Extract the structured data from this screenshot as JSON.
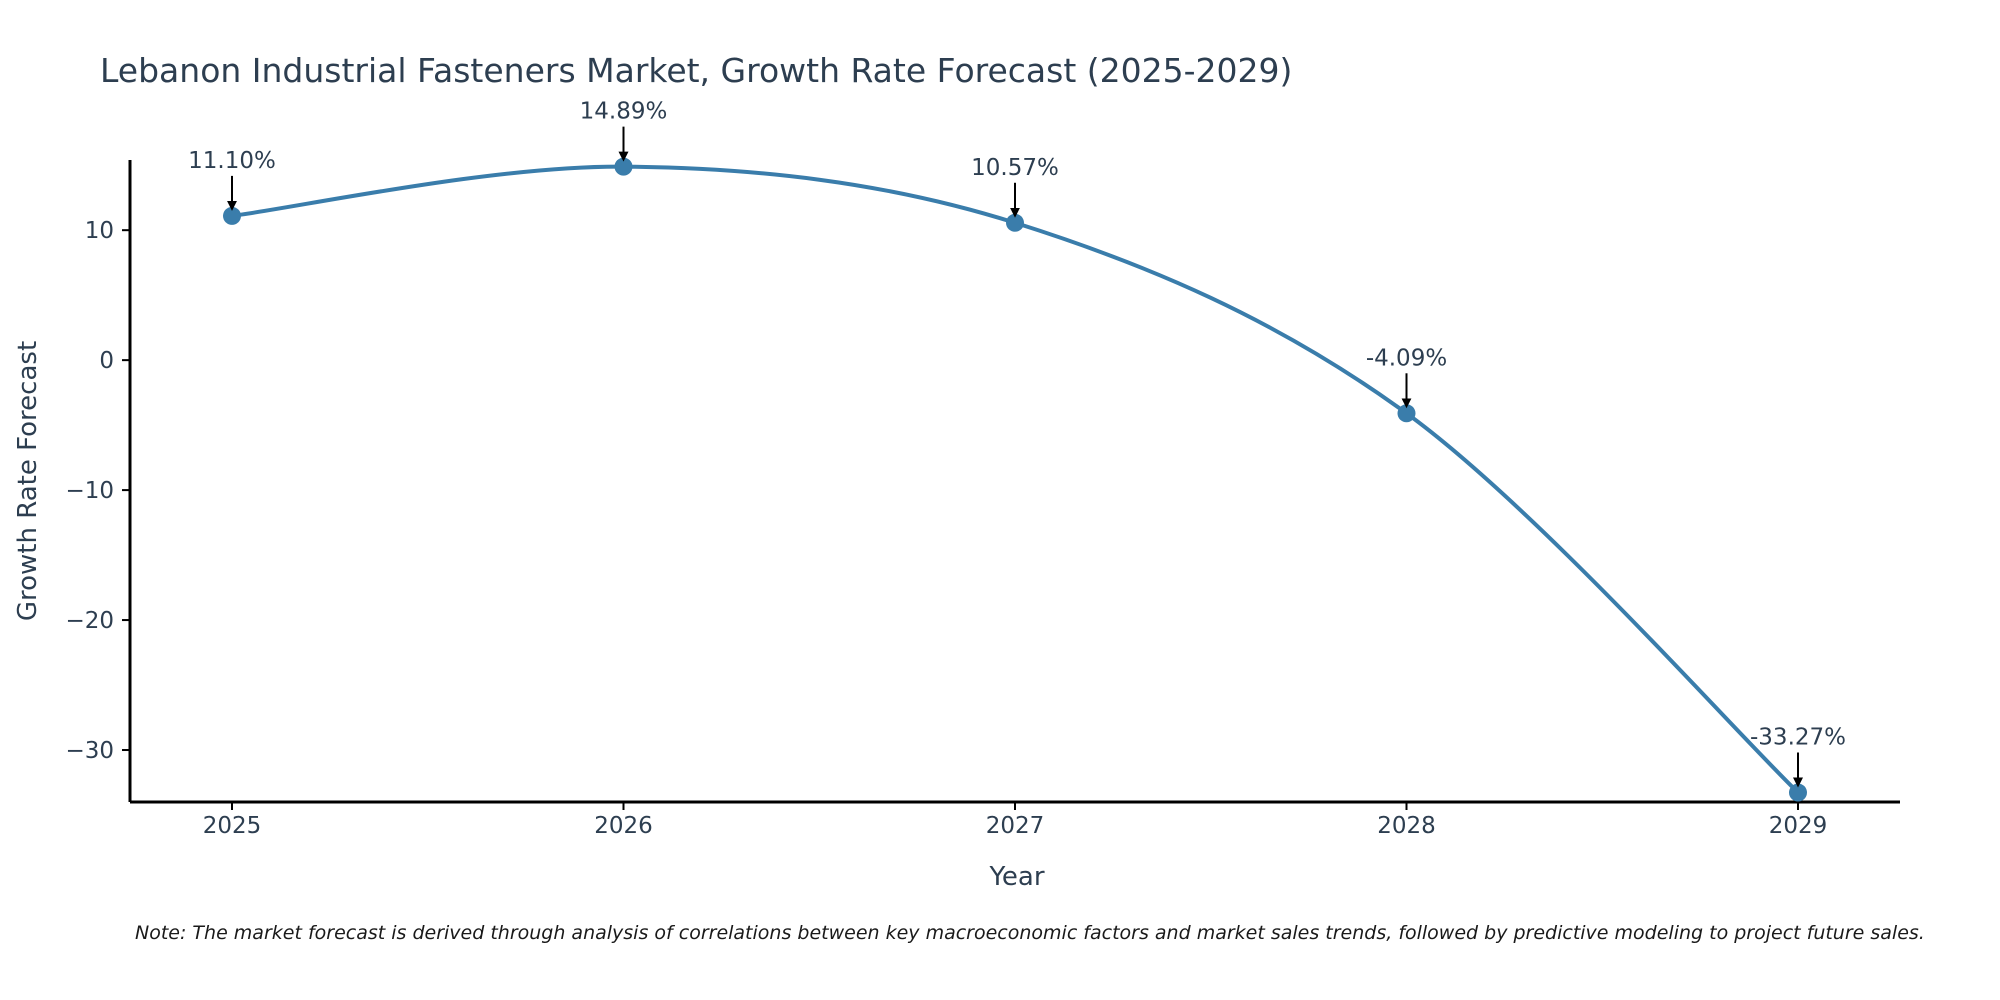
{
  "chart_data": {
    "type": "line",
    "title": "Lebanon Industrial Fasteners Market, Growth Rate Forecast (2025-2029)",
    "xlabel": "Year",
    "ylabel": "Growth Rate Forecast",
    "categories": [
      "2025",
      "2026",
      "2027",
      "2028",
      "2029"
    ],
    "values": [
      11.1,
      14.89,
      10.57,
      -4.09,
      -33.27
    ],
    "labels": [
      "11.10%",
      "14.89%",
      "10.57%",
      "-4.09%",
      "-33.27%"
    ],
    "y_ticks": [
      10,
      0,
      -10,
      -20,
      -30
    ],
    "y_tick_labels": [
      "10",
      "0",
      "−10",
      "−20",
      "−30"
    ],
    "ylim": [
      -34,
      15.4
    ],
    "grid": false,
    "line_color": "#3a7dab",
    "text_color": "#2d3e50"
  },
  "note": "Note: The market forecast is derived through analysis of correlations between key macroeconomic factors and market sales trends, followed by predictive modeling to project future sales."
}
